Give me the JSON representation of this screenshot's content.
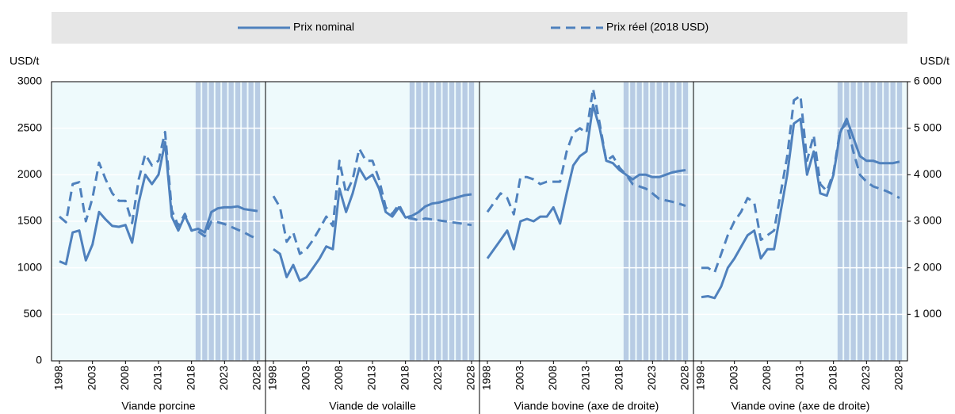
{
  "chart_data": {
    "type": "line",
    "legend": [
      {
        "name": "Prix nominal",
        "color": "#4f81bd",
        "dash": false
      },
      {
        "name": "Prix réel (2018 USD)",
        "color": "#4f81bd",
        "dash": true
      }
    ],
    "ylabel": "USD/t",
    "y2label": "USD/t",
    "ylim": [
      0,
      3000
    ],
    "yticks": [
      0,
      500,
      1000,
      1500,
      2000,
      2500,
      3000
    ],
    "y2lim": [
      0,
      6000
    ],
    "y2ticks": [
      {
        "value": 1000,
        "label": "1 000"
      },
      {
        "value": 2000,
        "label": "2 000"
      },
      {
        "value": 3000,
        "label": "3 000"
      },
      {
        "value": 4000,
        "label": "4 000"
      },
      {
        "value": 5000,
        "label": "5 000"
      },
      {
        "value": 6000,
        "label": "6 000"
      }
    ],
    "x": [
      1998,
      1999,
      2000,
      2001,
      2002,
      2003,
      2004,
      2005,
      2006,
      2007,
      2008,
      2009,
      2010,
      2011,
      2012,
      2013,
      2014,
      2015,
      2016,
      2017,
      2018,
      2019,
      2020,
      2021,
      2022,
      2023,
      2024,
      2025,
      2026,
      2027,
      2028
    ],
    "xlim": [
      1998,
      2028
    ],
    "xticks": [
      1998,
      2003,
      2008,
      2013,
      2018,
      2023,
      2028
    ],
    "projection_xlim": [
      2019,
      2028
    ],
    "grid": true,
    "panels": [
      {
        "label": "Viande porcine",
        "axis": "y",
        "series": [
          {
            "values": [
              1070,
              1040,
              1380,
              1400,
              1080,
              1250,
              1600,
              1520,
              1450,
              1440,
              1460,
              1270,
              1700,
              2000,
              1900,
              2000,
              2350,
              1550,
              1400,
              1560,
              1400,
              1420,
              1380,
              1600,
              1640,
              1650,
              1650,
              1660,
              1630,
              1620,
              1610
            ]
          },
          {
            "values": [
              1550,
              1490,
              1900,
              1920,
              1500,
              1750,
              2130,
              1950,
              1800,
              1720,
              1720,
              1480,
              1950,
              2220,
              2100,
              2150,
              2460,
              1620,
              1450,
              1580,
              1400,
              1390,
              1340,
              1500,
              1490,
              1470,
              1440,
              1410,
              1380,
              1340,
              1310
            ]
          }
        ]
      },
      {
        "label": "Viande de volaille",
        "axis": "y",
        "series": [
          {
            "values": [
              1200,
              1150,
              900,
              1030,
              860,
              900,
              1000,
              1100,
              1230,
              1200,
              1850,
              1600,
              1800,
              2070,
              1950,
              2000,
              1850,
              1600,
              1550,
              1650,
              1540,
              1560,
              1600,
              1660,
              1690,
              1700,
              1720,
              1740,
              1760,
              1780,
              1790
            ]
          },
          {
            "values": [
              1770,
              1650,
              1280,
              1380,
              1150,
              1200,
              1300,
              1420,
              1550,
              1450,
              2150,
              1800,
              1950,
              2280,
              2150,
              2150,
              1950,
              1650,
              1580,
              1680,
              1540,
              1530,
              1510,
              1530,
              1520,
              1510,
              1500,
              1490,
              1480,
              1470,
              1460
            ]
          }
        ]
      },
      {
        "label": "Viande bovine (axe de droite)",
        "axis": "y2",
        "series": [
          {
            "values": [
              2200,
              2400,
              2600,
              2800,
              2400,
              3000,
              3050,
              3000,
              3100,
              3100,
              3300,
              2950,
              3600,
              4200,
              4400,
              4500,
              5500,
              5000,
              4300,
              4250,
              4100,
              4000,
              3900,
              4000,
              4000,
              3950,
              3950,
              4000,
              4050,
              4080,
              4100
            ]
          },
          {
            "values": [
              3200,
              3400,
              3600,
              3500,
              3150,
              3950,
              3950,
              3900,
              3800,
              3850,
              3850,
              3850,
              4500,
              4900,
              5000,
              4900,
              5850,
              5100,
              4300,
              4400,
              4150,
              4000,
              3800,
              3750,
              3700,
              3600,
              3480,
              3450,
              3420,
              3380,
              3330
            ]
          }
        ]
      },
      {
        "label": "Viande ovine (axe de droite)",
        "axis": "y2",
        "series": [
          {
            "values": [
              1370,
              1390,
              1350,
              1600,
              2000,
              2200,
              2450,
              2700,
              2800,
              2200,
              2400,
              2400,
              3200,
              4000,
              5100,
              5200,
              4000,
              4500,
              3600,
              3550,
              4000,
              4900,
              5200,
              4800,
              4400,
              4300,
              4300,
              4250,
              4250,
              4250,
              4280
            ]
          },
          {
            "values": [
              2000,
              2000,
              1900,
              2300,
              2700,
              3000,
              3200,
              3500,
              3400,
              2600,
              2700,
              2800,
              3600,
              4400,
              5600,
              5700,
              4300,
              4850,
              3800,
              3650,
              4050,
              4950,
              5100,
              4500,
              4000,
              3850,
              3750,
              3700,
              3650,
              3580,
              3500
            ]
          }
        ]
      }
    ]
  }
}
